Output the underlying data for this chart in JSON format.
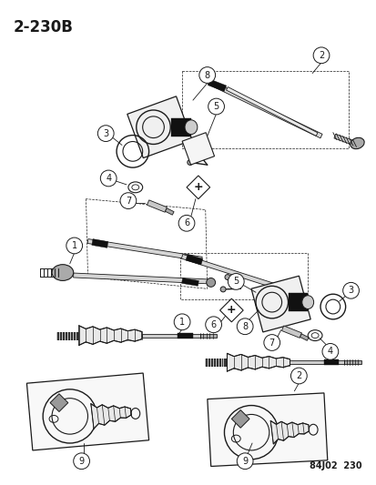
{
  "title": "2-230B",
  "footer": "84J02  230",
  "bg_color": "#ffffff",
  "line_color": "#1a1a1a",
  "title_fontsize": 12,
  "footer_fontsize": 7,
  "fig_width": 4.14,
  "fig_height": 5.33,
  "dpi": 100
}
